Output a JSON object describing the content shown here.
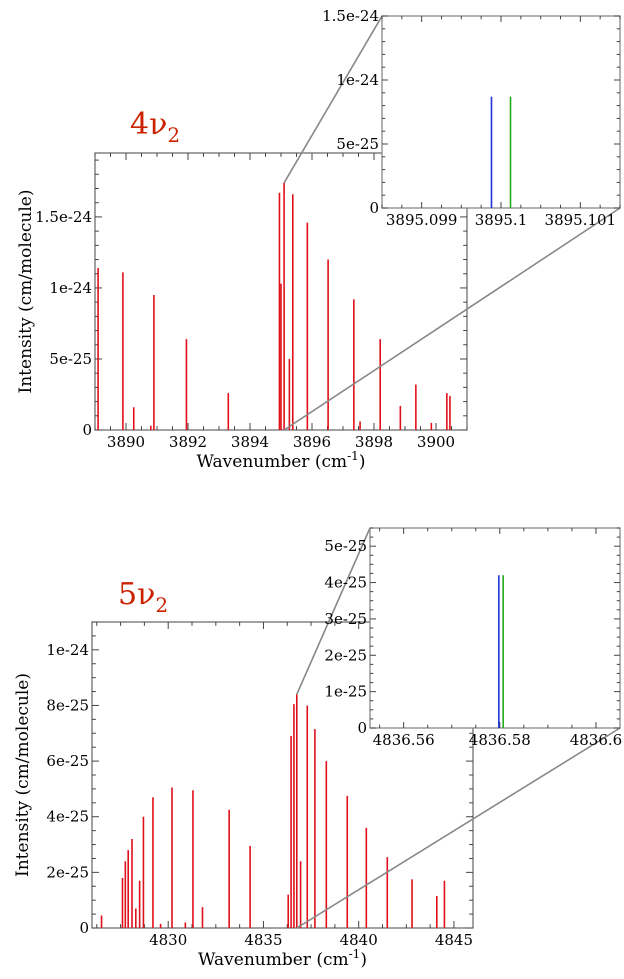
{
  "colors": {
    "main_lines": "#e0101a",
    "label_color": "#cc2200",
    "inset_blue": "#2233dd",
    "inset_green": "#22aa22",
    "connector": "#888888",
    "frame": "#888888"
  },
  "chart_data": [
    {
      "id": "4v2-main",
      "type": "bar",
      "band_label": "4ν",
      "band_subscript": "2",
      "xlabel": "Wavenumber (cm",
      "xlabel_sup": "-1",
      "xlabel_close": ")",
      "ylabel": "Intensity (cm/molecule)",
      "xlim": [
        3889.0,
        3901.0
      ],
      "ylim": [
        0,
        1.95e-24
      ],
      "xticks": [
        3890,
        3892,
        3894,
        3896,
        3898,
        3900
      ],
      "xtick_labels": [
        "3890",
        "3892",
        "3894",
        "3896",
        "3898",
        "3900"
      ],
      "yticks": [
        0,
        5e-25,
        1e-24,
        1.5e-24
      ],
      "ytick_labels": [
        "0",
        "5e-25",
        "1e-24",
        "1.5e-24"
      ],
      "x": [
        3889.1,
        3889.9,
        3890.25,
        3890.8,
        3890.9,
        3891.95,
        3893.3,
        3894.95,
        3895.0,
        3895.1,
        3895.27,
        3895.38,
        3895.85,
        3896.52,
        3897.35,
        3897.55,
        3898.2,
        3898.85,
        3899.35,
        3899.85,
        3900.35,
        3900.45
      ],
      "values": [
        1.14e-24,
        1.11e-24,
        1.6e-25,
        3e-26,
        9.5e-25,
        6.4e-25,
        2.6e-25,
        1.67e-24,
        1.03e-24,
        1.74e-24,
        5e-25,
        1.66e-24,
        1.46e-24,
        1.2e-24,
        9.2e-25,
        6e-26,
        6.4e-25,
        1.7e-25,
        3.2e-25,
        5e-26,
        2.6e-25,
        2.4e-25
      ],
      "grid": false
    },
    {
      "id": "4v2-inset",
      "type": "bar",
      "xlim": [
        3895.0985,
        3895.1015
      ],
      "ylim": [
        0,
        1.5e-24
      ],
      "xticks": [
        3895.099,
        3895.1,
        3895.101
      ],
      "xtick_labels": [
        "3895.099",
        "3895.1",
        "3895.101"
      ],
      "yticks": [
        0,
        5e-25,
        1e-24,
        1.5e-24
      ],
      "ytick_labels": [
        "0",
        "5e-25",
        "1e-24",
        "1.5e-24"
      ],
      "series": [
        {
          "color": "blue",
          "x": [
            3895.09988
          ],
          "values": [
            8.7e-25
          ]
        },
        {
          "color": "green",
          "x": [
            3895.10012
          ],
          "values": [
            8.7e-25
          ]
        }
      ],
      "grid": false
    },
    {
      "id": "5v2-main",
      "type": "bar",
      "band_label": "5ν",
      "band_subscript": "2",
      "xlabel": "Wavenumber (cm",
      "xlabel_sup": "-1",
      "xlabel_close": ")",
      "ylabel": "Intensity (cm/molecule)",
      "xlim": [
        4826.0,
        4846.0
      ],
      "ylim": [
        0,
        1.1e-24
      ],
      "xticks": [
        4830,
        4835,
        4840,
        4845
      ],
      "xtick_labels": [
        "4830",
        "4835",
        "4840",
        "4845"
      ],
      "yticks": [
        0,
        2e-25,
        4e-25,
        6e-25,
        8e-25,
        1e-24
      ],
      "ytick_labels": [
        "0",
        "2e-25",
        "4e-25",
        "6e-25",
        "8e-25",
        "1e-24"
      ],
      "x": [
        4826.5,
        4827.6,
        4827.75,
        4827.9,
        4828.1,
        4828.3,
        4828.5,
        4828.7,
        4829.2,
        4829.6,
        4830.2,
        4830.9,
        4831.3,
        4831.8,
        4833.2,
        4834.3,
        4836.3,
        4836.45,
        4836.6,
        4836.75,
        4836.95,
        4837.3,
        4837.7,
        4838.3,
        4839.4,
        4840.4,
        4841.5,
        4842.8,
        4844.1,
        4844.5
      ],
      "values": [
        4.5e-26,
        1.8e-25,
        2.4e-25,
        2.8e-25,
        3.2e-25,
        7e-26,
        1.7e-25,
        4e-25,
        4.7e-25,
        1.5e-26,
        5.05e-25,
        2e-26,
        4.95e-25,
        7.5e-26,
        4.25e-25,
        2.95e-25,
        1.2e-25,
        6.9e-25,
        8.05e-25,
        8.4e-25,
        2.4e-25,
        8e-25,
        7.15e-25,
        6e-25,
        4.75e-25,
        3.6e-25,
        2.55e-25,
        1.75e-25,
        1.15e-25,
        1.7e-25
      ],
      "grid": false
    },
    {
      "id": "5v2-inset",
      "type": "bar",
      "xlim": [
        4836.553,
        4836.605
      ],
      "ylim": [
        0,
        5.5e-25
      ],
      "xticks": [
        4836.56,
        4836.58,
        4836.6
      ],
      "xtick_labels": [
        "4836.56",
        "4836.58",
        "4836.6"
      ],
      "yticks": [
        0,
        1e-25,
        2e-25,
        3e-25,
        4e-25,
        5e-25
      ],
      "ytick_labels": [
        "0",
        "1e-25",
        "2e-25",
        "3e-25",
        "4e-25",
        "5e-25"
      ],
      "series": [
        {
          "color": "blue",
          "x": [
            4836.5798
          ],
          "values": [
            4.2e-25
          ]
        },
        {
          "color": "green",
          "x": [
            4836.5807
          ],
          "values": [
            4.2e-25
          ]
        }
      ],
      "grid": false
    }
  ]
}
